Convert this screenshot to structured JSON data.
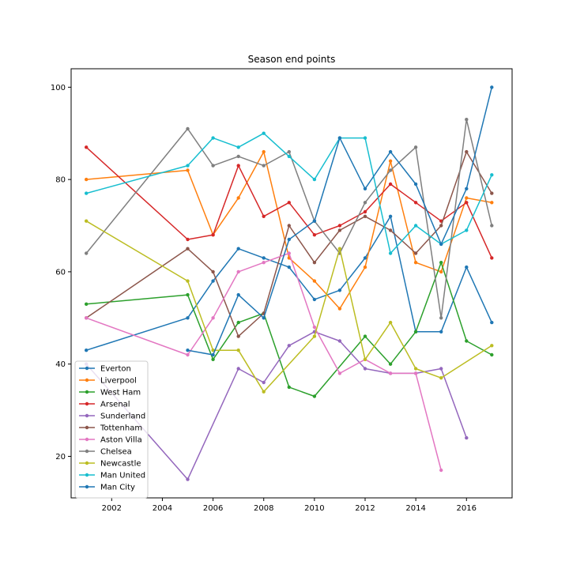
{
  "chart_data": {
    "type": "line",
    "title": "Season end points",
    "xlabel": "",
    "ylabel": "",
    "xlim": [
      2000.4,
      2017.8
    ],
    "ylim": [
      11,
      104
    ],
    "xticks": [
      2002,
      2004,
      2006,
      2008,
      2010,
      2012,
      2014,
      2016
    ],
    "yticks": [
      20,
      40,
      60,
      80,
      100
    ],
    "grid": false,
    "legend_position": "lower-left",
    "series": [
      {
        "name": "Everton",
        "color": "#1f77b4",
        "points": [
          [
            2001,
            43
          ],
          [
            2005,
            50
          ],
          [
            2006,
            58
          ],
          [
            2007,
            65
          ],
          [
            2008,
            63
          ],
          [
            2009,
            61
          ],
          [
            2010,
            54
          ],
          [
            2011,
            56
          ],
          [
            2012,
            63
          ],
          [
            2013,
            72
          ],
          [
            2014,
            47
          ],
          [
            2015,
            47
          ],
          [
            2016,
            61
          ],
          [
            2017,
            49
          ]
        ]
      },
      {
        "name": "Liverpool",
        "color": "#ff7f0e",
        "points": [
          [
            2001,
            80
          ],
          [
            2005,
            82
          ],
          [
            2006,
            68
          ],
          [
            2007,
            76
          ],
          [
            2008,
            86
          ],
          [
            2009,
            63
          ],
          [
            2010,
            58
          ],
          [
            2011,
            52
          ],
          [
            2012,
            61
          ],
          [
            2013,
            84
          ],
          [
            2014,
            62
          ],
          [
            2015,
            60
          ],
          [
            2016,
            76
          ],
          [
            2017,
            75
          ]
        ]
      },
      {
        "name": "West Ham",
        "color": "#2ca02c",
        "points": [
          [
            2001,
            53
          ],
          [
            2005,
            55
          ],
          [
            2006,
            41
          ],
          [
            2007,
            49
          ],
          [
            2008,
            51
          ],
          [
            2009,
            35
          ],
          [
            2010,
            33
          ],
          [
            2012,
            46
          ],
          [
            2013,
            40
          ],
          [
            2014,
            47
          ],
          [
            2015,
            62
          ],
          [
            2016,
            45
          ],
          [
            2017,
            42
          ]
        ]
      },
      {
        "name": "Arsenal",
        "color": "#d62728",
        "points": [
          [
            2001,
            87
          ],
          [
            2005,
            67
          ],
          [
            2006,
            68
          ],
          [
            2007,
            83
          ],
          [
            2008,
            72
          ],
          [
            2009,
            75
          ],
          [
            2010,
            68
          ],
          [
            2011,
            70
          ],
          [
            2012,
            73
          ],
          [
            2013,
            79
          ],
          [
            2014,
            75
          ],
          [
            2015,
            71
          ],
          [
            2016,
            75
          ],
          [
            2017,
            63
          ]
        ]
      },
      {
        "name": "Sunderland",
        "color": "#9467bd",
        "points": [
          [
            2001,
            40
          ],
          [
            2005,
            15
          ],
          [
            2007,
            39
          ],
          [
            2008,
            36
          ],
          [
            2009,
            44
          ],
          [
            2010,
            47
          ],
          [
            2011,
            45
          ],
          [
            2012,
            39
          ],
          [
            2013,
            38
          ],
          [
            2014,
            38
          ],
          [
            2015,
            39
          ],
          [
            2016,
            24
          ]
        ]
      },
      {
        "name": "Tottenham",
        "color": "#8c564b",
        "points": [
          [
            2001,
            50
          ],
          [
            2005,
            65
          ],
          [
            2006,
            60
          ],
          [
            2007,
            46
          ],
          [
            2008,
            51
          ],
          [
            2009,
            70
          ],
          [
            2010,
            62
          ],
          [
            2011,
            69
          ],
          [
            2012,
            72
          ],
          [
            2013,
            69
          ],
          [
            2014,
            64
          ],
          [
            2015,
            70
          ],
          [
            2016,
            86
          ],
          [
            2017,
            77
          ]
        ]
      },
      {
        "name": "Aston Villa",
        "color": "#e377c2",
        "points": [
          [
            2001,
            50
          ],
          [
            2005,
            42
          ],
          [
            2006,
            50
          ],
          [
            2007,
            60
          ],
          [
            2008,
            62
          ],
          [
            2009,
            64
          ],
          [
            2010,
            48
          ],
          [
            2011,
            38
          ],
          [
            2012,
            41
          ],
          [
            2013,
            38
          ],
          [
            2014,
            38
          ],
          [
            2015,
            17
          ]
        ]
      },
      {
        "name": "Chelsea",
        "color": "#7f7f7f",
        "points": [
          [
            2001,
            64
          ],
          [
            2005,
            91
          ],
          [
            2006,
            83
          ],
          [
            2007,
            85
          ],
          [
            2008,
            83
          ],
          [
            2009,
            86
          ],
          [
            2010,
            71
          ],
          [
            2011,
            64
          ],
          [
            2012,
            75
          ],
          [
            2013,
            82
          ],
          [
            2014,
            87
          ],
          [
            2015,
            50
          ],
          [
            2016,
            93
          ],
          [
            2017,
            70
          ]
        ]
      },
      {
        "name": "Newcastle",
        "color": "#bcbd22",
        "points": [
          [
            2001,
            71
          ],
          [
            2005,
            58
          ],
          [
            2006,
            43
          ],
          [
            2007,
            43
          ],
          [
            2008,
            34
          ],
          [
            2010,
            46
          ],
          [
            2011,
            65
          ],
          [
            2012,
            41
          ],
          [
            2013,
            49
          ],
          [
            2014,
            39
          ],
          [
            2015,
            37
          ],
          [
            2017,
            44
          ]
        ]
      },
      {
        "name": "Man United",
        "color": "#17becf",
        "points": [
          [
            2001,
            77
          ],
          [
            2005,
            83
          ],
          [
            2006,
            89
          ],
          [
            2007,
            87
          ],
          [
            2008,
            90
          ],
          [
            2009,
            85
          ],
          [
            2010,
            80
          ],
          [
            2011,
            89
          ],
          [
            2012,
            89
          ],
          [
            2013,
            64
          ],
          [
            2014,
            70
          ],
          [
            2015,
            66
          ],
          [
            2016,
            69
          ],
          [
            2017,
            81
          ]
        ]
      },
      {
        "name": "Man City",
        "color": "#1f77b4",
        "points": [
          [
            2005,
            43
          ],
          [
            2006,
            42
          ],
          [
            2007,
            55
          ],
          [
            2008,
            50
          ],
          [
            2009,
            67
          ],
          [
            2010,
            71
          ],
          [
            2011,
            89
          ],
          [
            2012,
            78
          ],
          [
            2013,
            86
          ],
          [
            2014,
            79
          ],
          [
            2015,
            66
          ],
          [
            2016,
            78
          ],
          [
            2017,
            100
          ]
        ]
      }
    ]
  }
}
